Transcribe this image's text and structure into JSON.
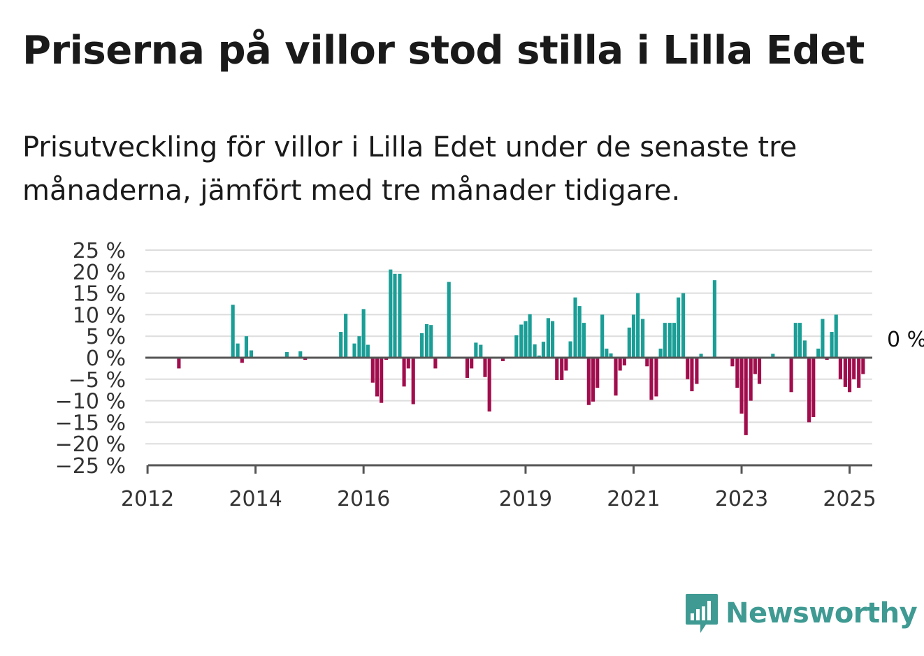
{
  "title": "Priserna på villor stod stilla i Lilla Edet",
  "subtitle": "Prisutveckling för villor i Lilla Edet under de senaste tre månaderna, jämfört med tre månader tidigare.",
  "brand": {
    "name": "Newsworthy",
    "color": "#3e9a92",
    "icon": "bar-chart-speech-bubble-icon"
  },
  "colors": {
    "positive": "#1a9e96",
    "negative": "#a10d4c",
    "grid": "#dddddd",
    "zero_line": "#555555",
    "axis_text": "#333333"
  },
  "chart_data": {
    "type": "bar",
    "grid": true,
    "x_axis": "time (months)",
    "xlim": [
      2011.96,
      2025.42
    ],
    "ylim": [
      -25,
      25
    ],
    "yticks": [
      25,
      20,
      15,
      10,
      5,
      0,
      -5,
      -10,
      -15,
      -20,
      -25
    ],
    "ytick_labels": [
      "25 %",
      "20 %",
      "15 %",
      "10 %",
      "5 %",
      "0 %",
      "−5 %",
      "−10 %",
      "−15 %",
      "−20 %",
      "−25 %"
    ],
    "xticks": [
      2012,
      2014,
      2016,
      2019,
      2021,
      2023,
      2025
    ],
    "xtick_labels": [
      "2012",
      "2014",
      "2016",
      "2019",
      "2021",
      "2023",
      "2025"
    ],
    "end_label": "0 %",
    "series": [
      {
        "points": [
          [
            2012.58,
            -2.5
          ],
          [
            2013.58,
            12.3
          ],
          [
            2013.67,
            3.3
          ],
          [
            2013.75,
            -1.2
          ],
          [
            2013.83,
            5.0
          ],
          [
            2013.92,
            1.7
          ],
          [
            2014.58,
            1.3
          ],
          [
            2014.83,
            1.5
          ],
          [
            2014.92,
            -0.5
          ],
          [
            2015.58,
            6.0
          ],
          [
            2015.67,
            10.2
          ],
          [
            2015.83,
            3.3
          ],
          [
            2015.92,
            5.0
          ],
          [
            2016.0,
            11.3
          ],
          [
            2016.08,
            3.0
          ],
          [
            2016.17,
            -5.8
          ],
          [
            2016.25,
            -9.0
          ],
          [
            2016.33,
            -10.5
          ],
          [
            2016.42,
            -0.5
          ],
          [
            2016.5,
            20.5
          ],
          [
            2016.58,
            19.5
          ],
          [
            2016.67,
            19.5
          ],
          [
            2016.75,
            -6.7
          ],
          [
            2016.83,
            -2.5
          ],
          [
            2016.92,
            -10.8
          ],
          [
            2017.08,
            5.7
          ],
          [
            2017.17,
            7.8
          ],
          [
            2017.25,
            7.6
          ],
          [
            2017.33,
            -2.5
          ],
          [
            2017.58,
            17.6
          ],
          [
            2017.92,
            -4.7
          ],
          [
            2018.0,
            -2.5
          ],
          [
            2018.08,
            3.5
          ],
          [
            2018.17,
            3.0
          ],
          [
            2018.25,
            -4.5
          ],
          [
            2018.33,
            -12.5
          ],
          [
            2018.58,
            -0.8
          ],
          [
            2018.83,
            5.2
          ],
          [
            2018.92,
            7.7
          ],
          [
            2019.0,
            8.5
          ],
          [
            2019.08,
            10.1
          ],
          [
            2019.17,
            3.1
          ],
          [
            2019.25,
            0.5
          ],
          [
            2019.33,
            3.7
          ],
          [
            2019.42,
            9.2
          ],
          [
            2019.5,
            8.5
          ],
          [
            2019.58,
            -5.2
          ],
          [
            2019.67,
            -5.2
          ],
          [
            2019.75,
            -3.0
          ],
          [
            2019.83,
            3.8
          ],
          [
            2019.92,
            14.0
          ],
          [
            2020.0,
            12.0
          ],
          [
            2020.08,
            8.1
          ],
          [
            2020.17,
            -11.0
          ],
          [
            2020.25,
            -10.2
          ],
          [
            2020.33,
            -7.0
          ],
          [
            2020.42,
            10.0
          ],
          [
            2020.5,
            2.1
          ],
          [
            2020.58,
            1.0
          ],
          [
            2020.67,
            -8.8
          ],
          [
            2020.75,
            -3.0
          ],
          [
            2020.83,
            -1.8
          ],
          [
            2020.92,
            7.0
          ],
          [
            2021.0,
            10.0
          ],
          [
            2021.08,
            15.0
          ],
          [
            2021.17,
            9.0
          ],
          [
            2021.25,
            -2.0
          ],
          [
            2021.33,
            -9.8
          ],
          [
            2021.42,
            -9.0
          ],
          [
            2021.5,
            2.1
          ],
          [
            2021.58,
            8.1
          ],
          [
            2021.67,
            8.1
          ],
          [
            2021.75,
            8.1
          ],
          [
            2021.83,
            14.0
          ],
          [
            2021.92,
            15.0
          ],
          [
            2022.0,
            -5.0
          ],
          [
            2022.08,
            -7.8
          ],
          [
            2022.17,
            -6.1
          ],
          [
            2022.25,
            0.9
          ],
          [
            2022.5,
            18.0
          ],
          [
            2022.83,
            -2.0
          ],
          [
            2022.92,
            -7.0
          ],
          [
            2023.0,
            -13.0
          ],
          [
            2023.08,
            -18.0
          ],
          [
            2023.17,
            -10.0
          ],
          [
            2023.25,
            -3.8
          ],
          [
            2023.33,
            -6.1
          ],
          [
            2023.58,
            0.9
          ],
          [
            2023.92,
            -8.0
          ],
          [
            2024.0,
            8.1
          ],
          [
            2024.08,
            8.1
          ],
          [
            2024.17,
            4.0
          ],
          [
            2024.25,
            -15.0
          ],
          [
            2024.33,
            -13.8
          ],
          [
            2024.42,
            2.1
          ],
          [
            2024.5,
            9.0
          ],
          [
            2024.58,
            -0.5
          ],
          [
            2024.67,
            6.0
          ],
          [
            2024.75,
            10.0
          ],
          [
            2024.83,
            -5.0
          ],
          [
            2024.92,
            -6.8
          ],
          [
            2025.0,
            -8.0
          ],
          [
            2025.08,
            -5.0
          ],
          [
            2025.17,
            -7.0
          ],
          [
            2025.25,
            -3.8
          ],
          [
            2025.33,
            0.0
          ]
        ]
      }
    ]
  }
}
